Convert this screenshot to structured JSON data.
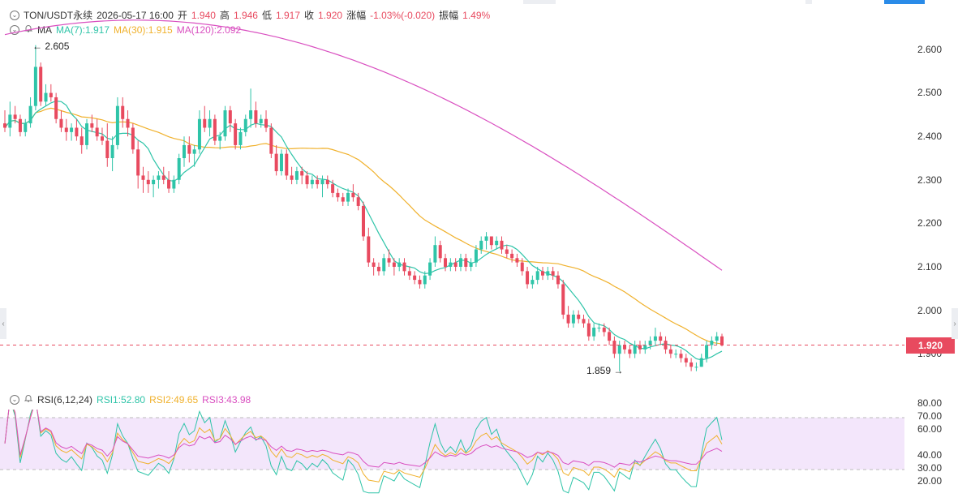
{
  "header": {
    "symbol": "TON/USDT永续",
    "date": "2026-05-17 16:00",
    "open_label": "开",
    "open": "1.940",
    "high_label": "高",
    "high": "1.946",
    "low_label": "低",
    "low": "1.917",
    "close_label": "收",
    "close": "1.920",
    "change_label": "涨幅",
    "change": "-1.03%(-0.020)",
    "amp_label": "振幅",
    "amp": "1.49%"
  },
  "ma_legend": {
    "title": "MA",
    "ma7": "MA(7):1.917",
    "ma30": "MA(30):1.915",
    "ma120": "MA(120):2.092"
  },
  "rsi_legend": {
    "title": "RSI(6,12,24)",
    "rsi1": "RSI1:52.80",
    "rsi2": "RSI2:49.65",
    "rsi3": "RSI3:43.98"
  },
  "price_axis": [
    "2.600",
    "2.500",
    "2.400",
    "2.300",
    "2.200",
    "2.100",
    "2.000",
    "1.900"
  ],
  "rsi_axis": [
    "80.00",
    "70.00",
    "60.00",
    "40.00",
    "30.00",
    "20.00"
  ],
  "current_price": "1.920",
  "annotations": {
    "high": "2.605",
    "low": "1.859",
    "high_arrow": "←",
    "low_arrow": "→"
  },
  "colors": {
    "up": "#2ec4a8",
    "down": "#e84a5f",
    "ma7": "#2ec4a8",
    "ma30": "#f0b12c",
    "ma120": "#d94fc0",
    "rsi_band": "#f3e6fb"
  },
  "chart_data": [
    {
      "type": "candlestick",
      "title": "TON/USDT永续",
      "ylim": [
        1.84,
        2.63
      ],
      "yticks": [
        2.6,
        2.5,
        2.4,
        2.3,
        2.2,
        2.1,
        2.0,
        1.9
      ],
      "ohlc": [
        [
          2.43,
          2.46,
          2.41,
          2.42
        ],
        [
          2.42,
          2.48,
          2.4,
          2.45
        ],
        [
          2.45,
          2.47,
          2.43,
          2.44
        ],
        [
          2.44,
          2.45,
          2.4,
          2.41
        ],
        [
          2.41,
          2.44,
          2.4,
          2.43
        ],
        [
          2.43,
          2.49,
          2.42,
          2.47
        ],
        [
          2.47,
          2.61,
          2.46,
          2.56
        ],
        [
          2.56,
          2.57,
          2.47,
          2.48
        ],
        [
          2.48,
          2.52,
          2.47,
          2.5
        ],
        [
          2.5,
          2.52,
          2.48,
          2.49
        ],
        [
          2.49,
          2.5,
          2.43,
          2.44
        ],
        [
          2.44,
          2.46,
          2.41,
          2.42
        ],
        [
          2.42,
          2.44,
          2.39,
          2.41
        ],
        [
          2.41,
          2.43,
          2.39,
          2.42
        ],
        [
          2.42,
          2.44,
          2.39,
          2.4
        ],
        [
          2.4,
          2.42,
          2.36,
          2.38
        ],
        [
          2.38,
          2.44,
          2.37,
          2.43
        ],
        [
          2.43,
          2.45,
          2.41,
          2.42
        ],
        [
          2.42,
          2.44,
          2.39,
          2.4
        ],
        [
          2.4,
          2.42,
          2.38,
          2.39
        ],
        [
          2.39,
          2.43,
          2.33,
          2.35
        ],
        [
          2.35,
          2.4,
          2.32,
          2.38
        ],
        [
          2.38,
          2.49,
          2.37,
          2.47
        ],
        [
          2.47,
          2.49,
          2.42,
          2.44
        ],
        [
          2.44,
          2.46,
          2.4,
          2.42
        ],
        [
          2.42,
          2.43,
          2.36,
          2.37
        ],
        [
          2.37,
          2.39,
          2.28,
          2.31
        ],
        [
          2.31,
          2.33,
          2.27,
          2.3
        ],
        [
          2.3,
          2.32,
          2.27,
          2.29
        ],
        [
          2.29,
          2.31,
          2.26,
          2.3
        ],
        [
          2.3,
          2.32,
          2.28,
          2.31
        ],
        [
          2.31,
          2.33,
          2.29,
          2.3
        ],
        [
          2.3,
          2.32,
          2.27,
          2.28
        ],
        [
          2.28,
          2.31,
          2.27,
          2.3
        ],
        [
          2.3,
          2.36,
          2.29,
          2.35
        ],
        [
          2.35,
          2.4,
          2.33,
          2.38
        ],
        [
          2.38,
          2.4,
          2.34,
          2.36
        ],
        [
          2.36,
          2.38,
          2.33,
          2.37
        ],
        [
          2.37,
          2.46,
          2.36,
          2.44
        ],
        [
          2.44,
          2.47,
          2.41,
          2.42
        ],
        [
          2.42,
          2.46,
          2.4,
          2.44
        ],
        [
          2.44,
          2.45,
          2.38,
          2.39
        ],
        [
          2.39,
          2.41,
          2.37,
          2.4
        ],
        [
          2.4,
          2.47,
          2.39,
          2.46
        ],
        [
          2.46,
          2.47,
          2.41,
          2.43
        ],
        [
          2.43,
          2.44,
          2.37,
          2.38
        ],
        [
          2.38,
          2.42,
          2.37,
          2.41
        ],
        [
          2.41,
          2.45,
          2.4,
          2.44
        ],
        [
          2.44,
          2.51,
          2.42,
          2.46
        ],
        [
          2.46,
          2.48,
          2.42,
          2.43
        ],
        [
          2.43,
          2.45,
          2.42,
          2.44
        ],
        [
          2.44,
          2.46,
          2.41,
          2.42
        ],
        [
          2.42,
          2.43,
          2.35,
          2.36
        ],
        [
          2.36,
          2.38,
          2.31,
          2.32
        ],
        [
          2.32,
          2.37,
          2.31,
          2.36
        ],
        [
          2.36,
          2.37,
          2.3,
          2.31
        ],
        [
          2.31,
          2.33,
          2.29,
          2.3
        ],
        [
          2.3,
          2.33,
          2.29,
          2.32
        ],
        [
          2.32,
          2.33,
          2.29,
          2.31
        ],
        [
          2.31,
          2.32,
          2.28,
          2.29
        ],
        [
          2.29,
          2.31,
          2.28,
          2.3
        ],
        [
          2.3,
          2.31,
          2.28,
          2.29
        ],
        [
          2.29,
          2.31,
          2.26,
          2.3
        ],
        [
          2.3,
          2.31,
          2.28,
          2.29
        ],
        [
          2.29,
          2.3,
          2.26,
          2.27
        ],
        [
          2.27,
          2.28,
          2.25,
          2.26
        ],
        [
          2.26,
          2.27,
          2.24,
          2.25
        ],
        [
          2.25,
          2.28,
          2.24,
          2.27
        ],
        [
          2.27,
          2.29,
          2.25,
          2.26
        ],
        [
          2.26,
          2.27,
          2.23,
          2.24
        ],
        [
          2.24,
          2.25,
          2.16,
          2.17
        ],
        [
          2.17,
          2.19,
          2.1,
          2.11
        ],
        [
          2.11,
          2.12,
          2.08,
          2.1
        ],
        [
          2.1,
          2.11,
          2.08,
          2.09
        ],
        [
          2.09,
          2.13,
          2.08,
          2.12
        ],
        [
          2.12,
          2.14,
          2.1,
          2.11
        ],
        [
          2.11,
          2.12,
          2.08,
          2.1
        ],
        [
          2.1,
          2.12,
          2.09,
          2.11
        ],
        [
          2.11,
          2.12,
          2.08,
          2.09
        ],
        [
          2.09,
          2.1,
          2.07,
          2.08
        ],
        [
          2.08,
          2.09,
          2.06,
          2.07
        ],
        [
          2.07,
          2.08,
          2.05,
          2.06
        ],
        [
          2.06,
          2.09,
          2.05,
          2.08
        ],
        [
          2.08,
          2.12,
          2.07,
          2.11
        ],
        [
          2.11,
          2.17,
          2.1,
          2.15
        ],
        [
          2.15,
          2.16,
          2.11,
          2.12
        ],
        [
          2.12,
          2.13,
          2.09,
          2.1
        ],
        [
          2.1,
          2.12,
          2.09,
          2.11
        ],
        [
          2.11,
          2.12,
          2.09,
          2.1
        ],
        [
          2.1,
          2.13,
          2.09,
          2.12
        ],
        [
          2.12,
          2.13,
          2.09,
          2.1
        ],
        [
          2.1,
          2.12,
          2.09,
          2.11
        ],
        [
          2.11,
          2.15,
          2.1,
          2.14
        ],
        [
          2.14,
          2.17,
          2.13,
          2.16
        ],
        [
          2.16,
          2.18,
          2.14,
          2.17
        ],
        [
          2.17,
          2.17,
          2.14,
          2.15
        ],
        [
          2.15,
          2.17,
          2.14,
          2.16
        ],
        [
          2.16,
          2.17,
          2.13,
          2.14
        ],
        [
          2.14,
          2.15,
          2.12,
          2.13
        ],
        [
          2.13,
          2.14,
          2.11,
          2.12
        ],
        [
          2.12,
          2.13,
          2.1,
          2.11
        ],
        [
          2.11,
          2.12,
          2.08,
          2.09
        ],
        [
          2.09,
          2.1,
          2.05,
          2.06
        ],
        [
          2.06,
          2.08,
          2.05,
          2.07
        ],
        [
          2.07,
          2.1,
          2.06,
          2.09
        ],
        [
          2.09,
          2.1,
          2.07,
          2.08
        ],
        [
          2.08,
          2.1,
          2.07,
          2.09
        ],
        [
          2.09,
          2.1,
          2.07,
          2.08
        ],
        [
          2.08,
          2.09,
          2.05,
          2.06
        ],
        [
          2.06,
          2.07,
          1.98,
          1.99
        ],
        [
          1.99,
          2.01,
          1.96,
          1.97
        ],
        [
          1.97,
          2.0,
          1.96,
          1.99
        ],
        [
          1.99,
          2.0,
          1.97,
          1.98
        ],
        [
          1.98,
          1.99,
          1.96,
          1.97
        ],
        [
          1.97,
          1.98,
          1.93,
          1.94
        ],
        [
          1.94,
          1.97,
          1.93,
          1.96
        ],
        [
          1.96,
          1.97,
          1.95,
          1.96
        ],
        [
          1.96,
          1.97,
          1.94,
          1.95
        ],
        [
          1.95,
          1.96,
          1.92,
          1.93
        ],
        [
          1.93,
          1.94,
          1.89,
          1.9
        ],
        [
          1.9,
          1.93,
          1.86,
          1.92
        ],
        [
          1.92,
          1.93,
          1.9,
          1.91
        ],
        [
          1.91,
          1.92,
          1.89,
          1.9
        ],
        [
          1.9,
          1.93,
          1.89,
          1.92
        ],
        [
          1.92,
          1.93,
          1.9,
          1.91
        ],
        [
          1.91,
          1.93,
          1.9,
          1.92
        ],
        [
          1.92,
          1.94,
          1.91,
          1.93
        ],
        [
          1.93,
          1.96,
          1.92,
          1.94
        ],
        [
          1.94,
          1.95,
          1.92,
          1.93
        ],
        [
          1.93,
          1.94,
          1.9,
          1.91
        ],
        [
          1.91,
          1.92,
          1.89,
          1.9
        ],
        [
          1.9,
          1.91,
          1.89,
          1.9
        ],
        [
          1.9,
          1.91,
          1.88,
          1.89
        ],
        [
          1.89,
          1.9,
          1.87,
          1.88
        ],
        [
          1.88,
          1.89,
          1.86,
          1.87
        ],
        [
          1.87,
          1.88,
          1.86,
          1.87
        ],
        [
          1.87,
          1.9,
          1.87,
          1.89
        ],
        [
          1.89,
          1.93,
          1.88,
          1.92
        ],
        [
          1.92,
          1.94,
          1.91,
          1.93
        ],
        [
          1.93,
          1.95,
          1.92,
          1.94
        ],
        [
          1.94,
          1.946,
          1.917,
          1.92
        ]
      ],
      "ma7_last": 1.917,
      "ma30_last": 1.915,
      "ma120_last": 2.092,
      "high_annotation": 2.605,
      "low_annotation": 1.859
    },
    {
      "type": "line",
      "title": "RSI(6,12,24)",
      "ylim": [
        10,
        85
      ],
      "yticks": [
        80,
        70,
        60,
        40,
        30,
        20
      ],
      "band": [
        30,
        70
      ],
      "series": [
        {
          "name": "RSI1",
          "last": 52.8
        },
        {
          "name": "RSI2",
          "last": 49.65
        },
        {
          "name": "RSI3",
          "last": 43.98
        }
      ]
    }
  ]
}
